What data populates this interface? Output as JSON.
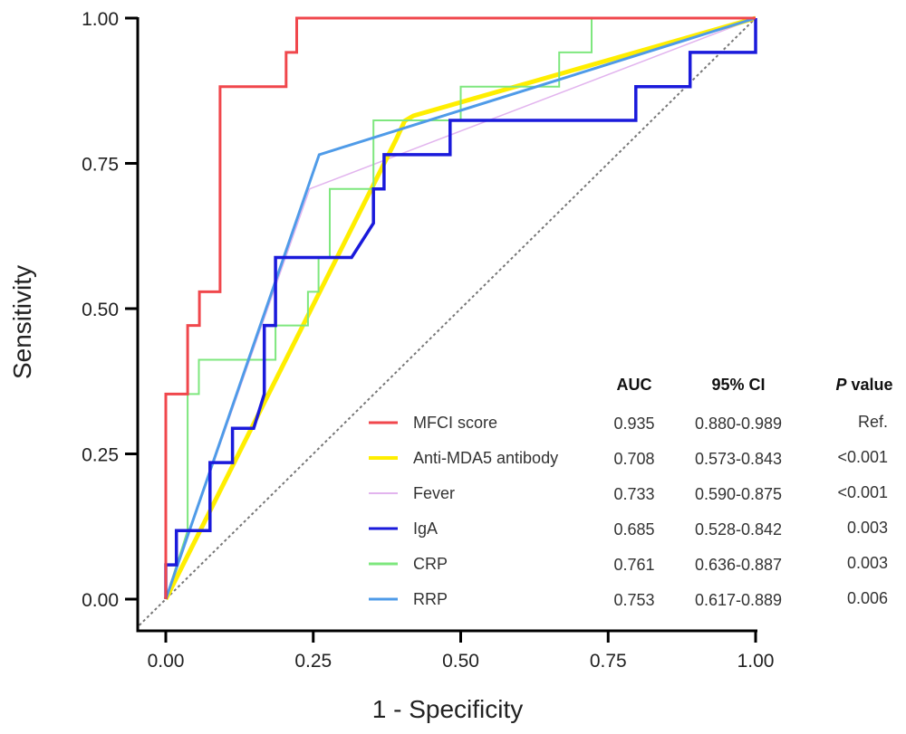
{
  "chart_data": {
    "type": "line",
    "title": "",
    "xlabel": "1 - Specificity",
    "ylabel": "Sensitivity",
    "xlim": [
      0,
      1
    ],
    "ylim": [
      0,
      1
    ],
    "x_ticks": [
      "0.00",
      "0.25",
      "0.50",
      "0.75",
      "1.00"
    ],
    "y_ticks": [
      "0.00",
      "0.25",
      "0.50",
      "0.75",
      "1.00"
    ],
    "grid": false,
    "legend_position": "bottom-right",
    "reference_line": {
      "name": "chance",
      "points": [
        [
          0,
          0
        ],
        [
          1,
          1
        ]
      ],
      "style": "dashed",
      "color": "#777777"
    },
    "legend_headers": {
      "auc": "AUC",
      "ci": "95% CI",
      "p_italic": "P",
      "p_rest": " value"
    },
    "series": [
      {
        "name": "MFCI score",
        "color": "#f0474c",
        "width": 3,
        "auc": "0.935",
        "ci": "0.880-0.989",
        "p": "Ref.",
        "points": [
          [
            0,
            0
          ],
          [
            0,
            0.353
          ],
          [
            0.037,
            0.353
          ],
          [
            0.037,
            0.471
          ],
          [
            0.057,
            0.471
          ],
          [
            0.057,
            0.529
          ],
          [
            0.092,
            0.529
          ],
          [
            0.092,
            0.882
          ],
          [
            0.204,
            0.882
          ],
          [
            0.204,
            0.941
          ],
          [
            0.222,
            0.941
          ],
          [
            0.222,
            1
          ],
          [
            1,
            1
          ]
        ]
      },
      {
        "name": "Anti-MDA5 antibody",
        "color": "#ffee00",
        "width": 5,
        "auc": "0.708",
        "ci": "0.573-0.843",
        "p": "<0.001",
        "points": [
          [
            0,
            0
          ],
          [
            0.39,
            0.79
          ],
          [
            0.405,
            0.823
          ],
          [
            0.42,
            0.832
          ],
          [
            1,
            1
          ]
        ]
      },
      {
        "name": "Fever",
        "color": "#e2b4ee",
        "width": 1.5,
        "auc": "0.733",
        "ci": "0.590-0.875",
        "p": "<0.001",
        "points": [
          [
            0,
            0
          ],
          [
            0.244,
            0.706
          ],
          [
            1,
            1
          ]
        ]
      },
      {
        "name": "IgA",
        "color": "#1a1adb",
        "width": 3.5,
        "auc": "0.685",
        "ci": "0.528-0.842",
        "p": "0.003",
        "points": [
          [
            0,
            0
          ],
          [
            0,
            0.059
          ],
          [
            0.018,
            0.059
          ],
          [
            0.018,
            0.118
          ],
          [
            0.075,
            0.118
          ],
          [
            0.075,
            0.235
          ],
          [
            0.113,
            0.235
          ],
          [
            0.113,
            0.294
          ],
          [
            0.149,
            0.294
          ],
          [
            0.167,
            0.353
          ],
          [
            0.167,
            0.471
          ],
          [
            0.186,
            0.471
          ],
          [
            0.186,
            0.588
          ],
          [
            0.315,
            0.588
          ],
          [
            0.352,
            0.647
          ],
          [
            0.352,
            0.706
          ],
          [
            0.37,
            0.706
          ],
          [
            0.37,
            0.765
          ],
          [
            0.482,
            0.765
          ],
          [
            0.482,
            0.824
          ],
          [
            0.797,
            0.824
          ],
          [
            0.797,
            0.882
          ],
          [
            0.889,
            0.882
          ],
          [
            0.889,
            0.941
          ],
          [
            1,
            0.941
          ],
          [
            1,
            1
          ]
        ]
      },
      {
        "name": "CRP",
        "color": "#7ee77e",
        "width": 2,
        "auc": "0.761",
        "ci": "0.636-0.887",
        "p": "0.003",
        "points": [
          [
            0,
            0
          ],
          [
            0.037,
            0.118
          ],
          [
            0.037,
            0.353
          ],
          [
            0.056,
            0.353
          ],
          [
            0.056,
            0.412
          ],
          [
            0.186,
            0.412
          ],
          [
            0.186,
            0.471
          ],
          [
            0.241,
            0.471
          ],
          [
            0.241,
            0.529
          ],
          [
            0.259,
            0.529
          ],
          [
            0.259,
            0.588
          ],
          [
            0.278,
            0.588
          ],
          [
            0.278,
            0.706
          ],
          [
            0.352,
            0.706
          ],
          [
            0.352,
            0.824
          ],
          [
            0.5,
            0.824
          ],
          [
            0.5,
            0.882
          ],
          [
            0.667,
            0.882
          ],
          [
            0.667,
            0.941
          ],
          [
            0.722,
            0.941
          ],
          [
            0.722,
            1
          ],
          [
            1,
            1
          ]
        ]
      },
      {
        "name": "RRP",
        "color": "#4f9be8",
        "width": 3,
        "auc": "0.753",
        "ci": "0.617-0.889",
        "p": "0.006",
        "points": [
          [
            0,
            0
          ],
          [
            0.26,
            0.765
          ],
          [
            1,
            1
          ]
        ]
      }
    ]
  }
}
